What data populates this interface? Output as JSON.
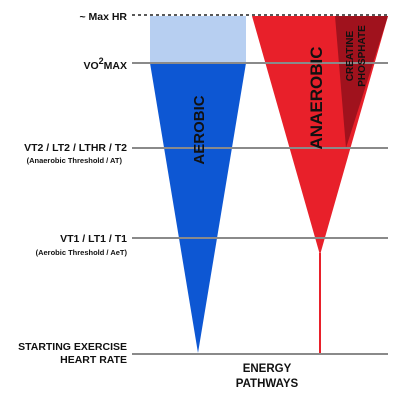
{
  "levels": {
    "max_hr": "~ Max HR",
    "vo2max_main": "VO",
    "vo2max_sup": "2",
    "vo2max_suffix": "MAX",
    "vt2": "VT2 / LT2 / LTHR / T2",
    "vt2_sub": "(Anaerobic Threshold / AT)",
    "vt1": "VT1 / LT1 / T1",
    "vt1_sub": "(Aerobic Threshold / AeT)",
    "start_line1": "STARTING EXERCISE",
    "start_line2": "HEART RATE"
  },
  "pathways": {
    "aerobic": "AEROBIC",
    "anaerobic": "ANAEROBIC",
    "creatine_line1": "CREATINE",
    "creatine_line2": "PHOSPHATE"
  },
  "footer": {
    "line1": "ENERGY",
    "line2": "PATHWAYS"
  },
  "colors": {
    "aerobic": "#0d57d3",
    "aerobic_light": "#b7cff1",
    "anaerobic": "#e8202a",
    "creatine": "#a0121d",
    "level_line": "#8a8a8a",
    "text": "#111111"
  }
}
